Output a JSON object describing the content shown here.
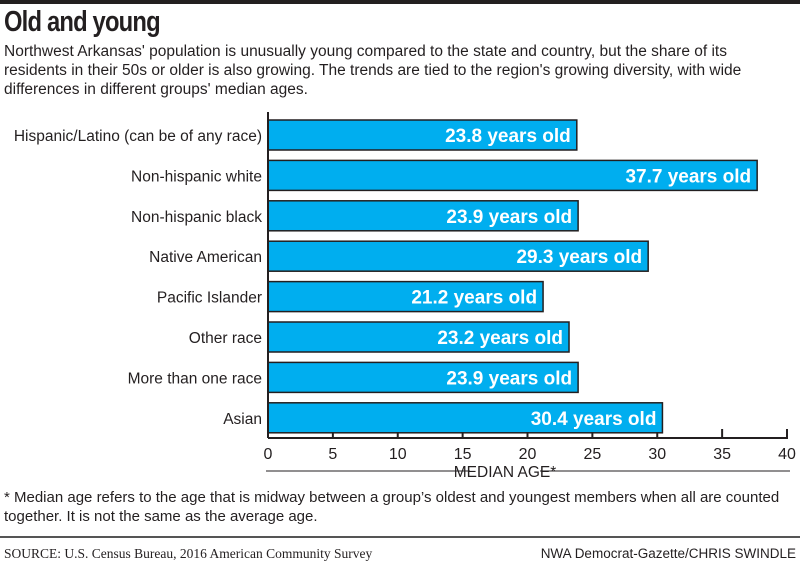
{
  "title": "Old and young",
  "subtitle": "Northwest Arkansas' population is unusually young compared to the state and country, but the share of its residents in their 50s or older is also growing. The trends are tied to the region's growing diversity, with wide differences in different groups' median ages.",
  "footnote": "* Median age refers to the age that is midway between a group’s oldest and youngest members when all are counted together. It is not the same as the average age.",
  "source": "SOURCE: U.S. Census Bureau, 2016 American Community Survey",
  "credit": "NWA Democrat-Gazette/CHRIS SWINDLE",
  "colors": {
    "bar": "#00aeef",
    "outline": "#231f20",
    "label": "#ffffff"
  },
  "chart_data": {
    "type": "bar",
    "orientation": "horizontal",
    "categories": [
      "Hispanic/Latino (can be of any race)",
      "Non-hispanic white",
      "Non-hispanic black",
      "Native American",
      "Pacific Islander",
      "Other race",
      "More than one race",
      "Asian"
    ],
    "values": [
      23.8,
      37.7,
      23.9,
      29.3,
      21.2,
      23.2,
      23.9,
      30.4
    ],
    "data_labels": [
      "23.8 years old",
      "37.7 years old",
      "23.9 years old",
      "29.3 years old",
      "21.2 years old",
      "23.2 years old",
      "23.9 years old",
      "30.4 years old"
    ],
    "xlabel": "MEDIAN AGE*",
    "xlim": [
      0,
      40
    ],
    "xticks": [
      "0",
      "5",
      "10",
      "15",
      "20",
      "25",
      "30",
      "35",
      "40"
    ],
    "grid": false
  }
}
